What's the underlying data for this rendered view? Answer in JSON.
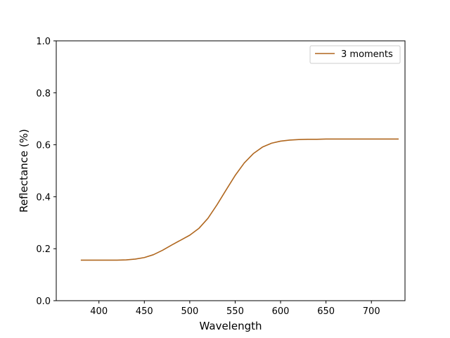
{
  "chart_data": {
    "type": "line",
    "xlabel": "Wavelength",
    "ylabel": "Reflectance (%)",
    "xlim": [
      353,
      737
    ],
    "ylim": [
      0.0,
      1.0
    ],
    "xticks": [
      "400",
      "450",
      "500",
      "550",
      "600",
      "650",
      "700"
    ],
    "yticks": [
      "0.0",
      "0.2",
      "0.4",
      "0.6",
      "0.8",
      "1.0"
    ],
    "grid": false,
    "legend_position": "top-right",
    "series": [
      {
        "name": "3 moments",
        "color": "#b0671f",
        "x": [
          380,
          390,
          400,
          410,
          420,
          430,
          440,
          450,
          460,
          470,
          480,
          490,
          500,
          510,
          520,
          530,
          540,
          550,
          560,
          570,
          580,
          590,
          600,
          610,
          620,
          630,
          640,
          650,
          660,
          670,
          680,
          690,
          700,
          710,
          720,
          730
        ],
        "y": [
          0.156,
          0.156,
          0.156,
          0.156,
          0.156,
          0.157,
          0.16,
          0.166,
          0.177,
          0.194,
          0.214,
          0.233,
          0.252,
          0.278,
          0.317,
          0.369,
          0.426,
          0.482,
          0.53,
          0.566,
          0.591,
          0.606,
          0.614,
          0.618,
          0.62,
          0.621,
          0.621,
          0.622,
          0.622,
          0.622,
          0.622,
          0.622,
          0.622,
          0.622,
          0.622,
          0.622
        ]
      }
    ]
  }
}
